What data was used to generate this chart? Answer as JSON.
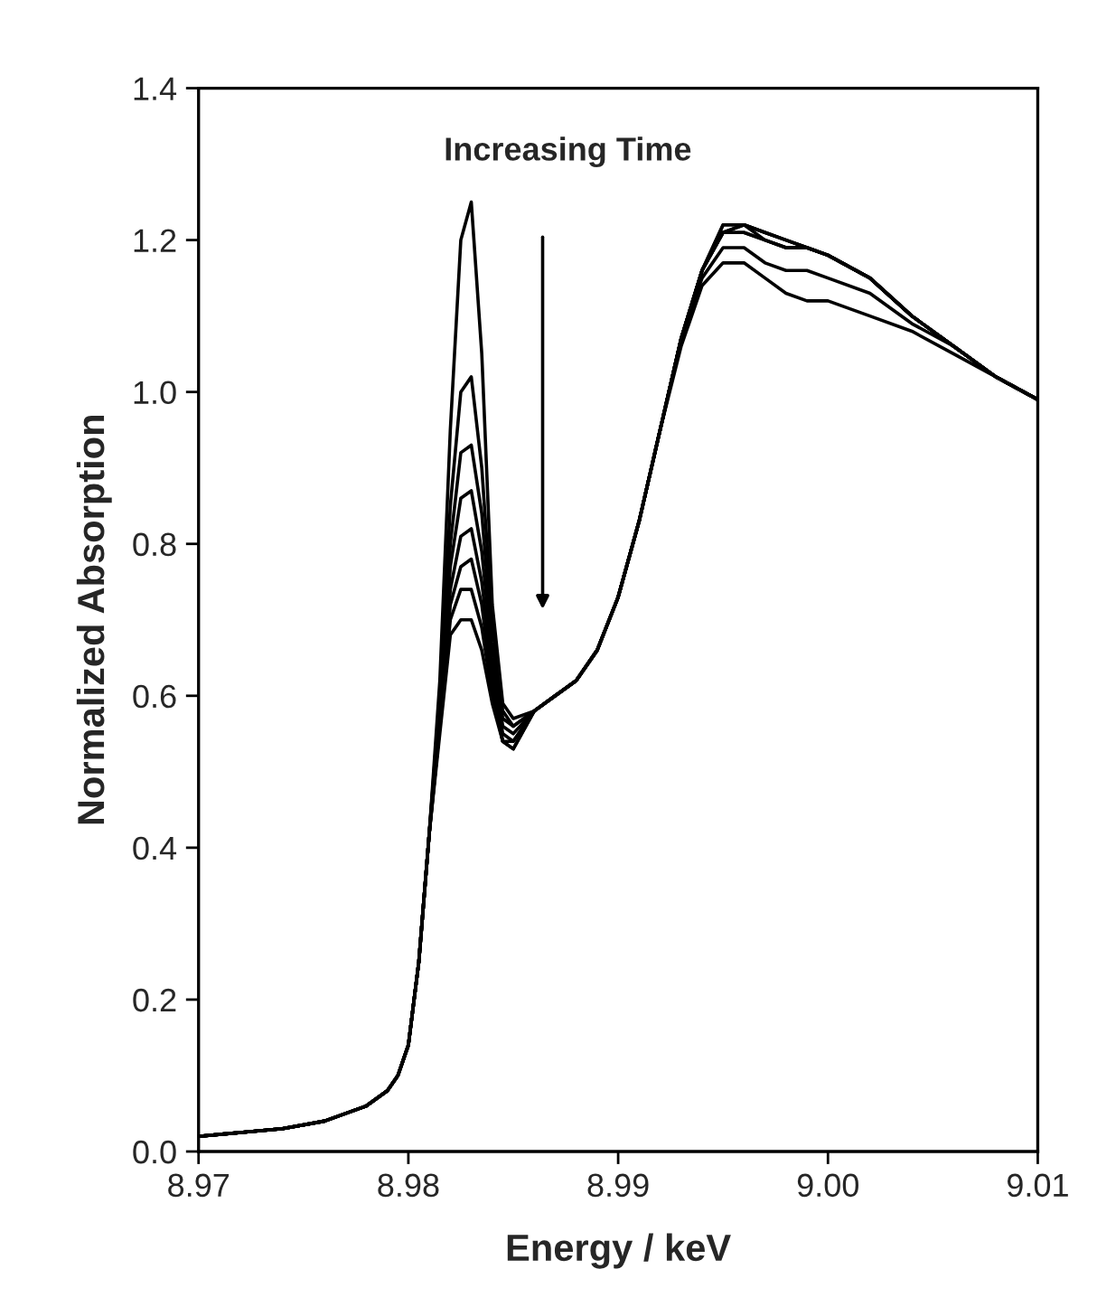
{
  "chart_data": {
    "type": "line",
    "xlabel": "Energy / keV",
    "ylabel": "Normalized Absorption",
    "annotations": [
      "Increasing Time"
    ],
    "x": [
      8.97,
      8.972,
      8.974,
      8.976,
      8.978,
      8.979,
      8.9795,
      8.98,
      8.9805,
      8.981,
      8.9815,
      8.982,
      8.9825,
      8.983,
      8.9835,
      8.984,
      8.9845,
      8.985,
      8.986,
      8.987,
      8.988,
      8.989,
      8.99,
      8.991,
      8.992,
      8.993,
      8.994,
      8.995,
      8.996,
      8.997,
      8.998,
      8.999,
      9.0,
      9.002,
      9.004,
      9.006,
      9.008,
      9.01
    ],
    "series": [
      {
        "color": "#000000",
        "values": [
          0.02,
          0.025,
          0.03,
          0.04,
          0.06,
          0.08,
          0.1,
          0.14,
          0.25,
          0.42,
          0.62,
          0.95,
          1.2,
          1.25,
          1.05,
          0.72,
          0.59,
          0.57,
          0.58,
          0.6,
          0.62,
          0.66,
          0.73,
          0.83,
          0.95,
          1.06,
          1.14,
          1.17,
          1.17,
          1.15,
          1.13,
          1.12,
          1.12,
          1.1,
          1.08,
          1.05,
          1.02,
          0.99
        ]
      },
      {
        "color": "#000000",
        "values": [
          0.02,
          0.025,
          0.03,
          0.04,
          0.06,
          0.08,
          0.1,
          0.14,
          0.25,
          0.42,
          0.6,
          0.85,
          1.0,
          1.02,
          0.9,
          0.7,
          0.58,
          0.56,
          0.58,
          0.6,
          0.62,
          0.66,
          0.73,
          0.83,
          0.95,
          1.07,
          1.15,
          1.19,
          1.19,
          1.17,
          1.16,
          1.16,
          1.15,
          1.13,
          1.09,
          1.06,
          1.02,
          0.99
        ]
      },
      {
        "color": "#000000",
        "values": [
          0.02,
          0.025,
          0.03,
          0.04,
          0.06,
          0.08,
          0.1,
          0.14,
          0.25,
          0.42,
          0.59,
          0.8,
          0.92,
          0.93,
          0.84,
          0.67,
          0.57,
          0.56,
          0.58,
          0.6,
          0.62,
          0.66,
          0.73,
          0.83,
          0.95,
          1.07,
          1.16,
          1.21,
          1.21,
          1.2,
          1.19,
          1.19,
          1.18,
          1.15,
          1.1,
          1.06,
          1.02,
          0.99
        ]
      },
      {
        "color": "#000000",
        "values": [
          0.02,
          0.025,
          0.03,
          0.04,
          0.06,
          0.08,
          0.1,
          0.14,
          0.25,
          0.42,
          0.58,
          0.77,
          0.86,
          0.87,
          0.79,
          0.65,
          0.56,
          0.55,
          0.58,
          0.6,
          0.62,
          0.66,
          0.73,
          0.83,
          0.95,
          1.07,
          1.16,
          1.21,
          1.21,
          1.2,
          1.19,
          1.19,
          1.18,
          1.15,
          1.1,
          1.06,
          1.02,
          0.99
        ]
      },
      {
        "color": "#000000",
        "values": [
          0.02,
          0.025,
          0.03,
          0.04,
          0.06,
          0.08,
          0.1,
          0.14,
          0.25,
          0.42,
          0.57,
          0.74,
          0.81,
          0.82,
          0.75,
          0.63,
          0.55,
          0.54,
          0.58,
          0.6,
          0.62,
          0.66,
          0.73,
          0.83,
          0.95,
          1.07,
          1.16,
          1.21,
          1.22,
          1.2,
          1.19,
          1.19,
          1.18,
          1.15,
          1.1,
          1.06,
          1.02,
          0.99
        ]
      },
      {
        "color": "#000000",
        "values": [
          0.02,
          0.025,
          0.03,
          0.04,
          0.06,
          0.08,
          0.1,
          0.14,
          0.25,
          0.42,
          0.56,
          0.72,
          0.77,
          0.78,
          0.72,
          0.61,
          0.54,
          0.54,
          0.58,
          0.6,
          0.62,
          0.66,
          0.73,
          0.83,
          0.95,
          1.07,
          1.16,
          1.21,
          1.22,
          1.21,
          1.2,
          1.19,
          1.18,
          1.15,
          1.1,
          1.06,
          1.02,
          0.99
        ]
      },
      {
        "color": "#000000",
        "values": [
          0.02,
          0.025,
          0.03,
          0.04,
          0.06,
          0.08,
          0.1,
          0.14,
          0.25,
          0.42,
          0.56,
          0.7,
          0.74,
          0.74,
          0.69,
          0.6,
          0.54,
          0.53,
          0.58,
          0.6,
          0.62,
          0.66,
          0.73,
          0.83,
          0.95,
          1.07,
          1.16,
          1.22,
          1.22,
          1.21,
          1.2,
          1.19,
          1.18,
          1.15,
          1.1,
          1.06,
          1.02,
          0.99
        ]
      },
      {
        "color": "#000000",
        "values": [
          0.02,
          0.025,
          0.03,
          0.04,
          0.06,
          0.08,
          0.1,
          0.14,
          0.25,
          0.42,
          0.55,
          0.68,
          0.7,
          0.7,
          0.66,
          0.59,
          0.54,
          0.53,
          0.58,
          0.6,
          0.62,
          0.66,
          0.73,
          0.83,
          0.95,
          1.07,
          1.16,
          1.22,
          1.22,
          1.21,
          1.2,
          1.19,
          1.18,
          1.15,
          1.1,
          1.06,
          1.02,
          0.99
        ]
      }
    ],
    "xlim": [
      8.97,
      9.01
    ],
    "xticks": [
      {
        "value": 8.97,
        "label": "8.97"
      },
      {
        "value": 8.98,
        "label": "8.98"
      },
      {
        "value": 8.99,
        "label": "8.99"
      },
      {
        "value": 9.0,
        "label": "9.00"
      },
      {
        "value": 9.01,
        "label": "9.01"
      }
    ],
    "ylim": [
      0,
      1.4
    ],
    "yticks": [
      {
        "value": 0,
        "label": "0.0"
      },
      {
        "value": 0.2,
        "label": "0.2"
      },
      {
        "value": 0.4,
        "label": "0.4"
      },
      {
        "value": 0.6,
        "label": "0.6"
      },
      {
        "value": 0.8,
        "label": "0.8"
      },
      {
        "value": 1.0,
        "label": "1.0"
      },
      {
        "value": 1.2,
        "label": "1.2"
      },
      {
        "value": 1.4,
        "label": "1.4"
      }
    ],
    "grid": false,
    "marker": "none",
    "line_style": "solid"
  }
}
